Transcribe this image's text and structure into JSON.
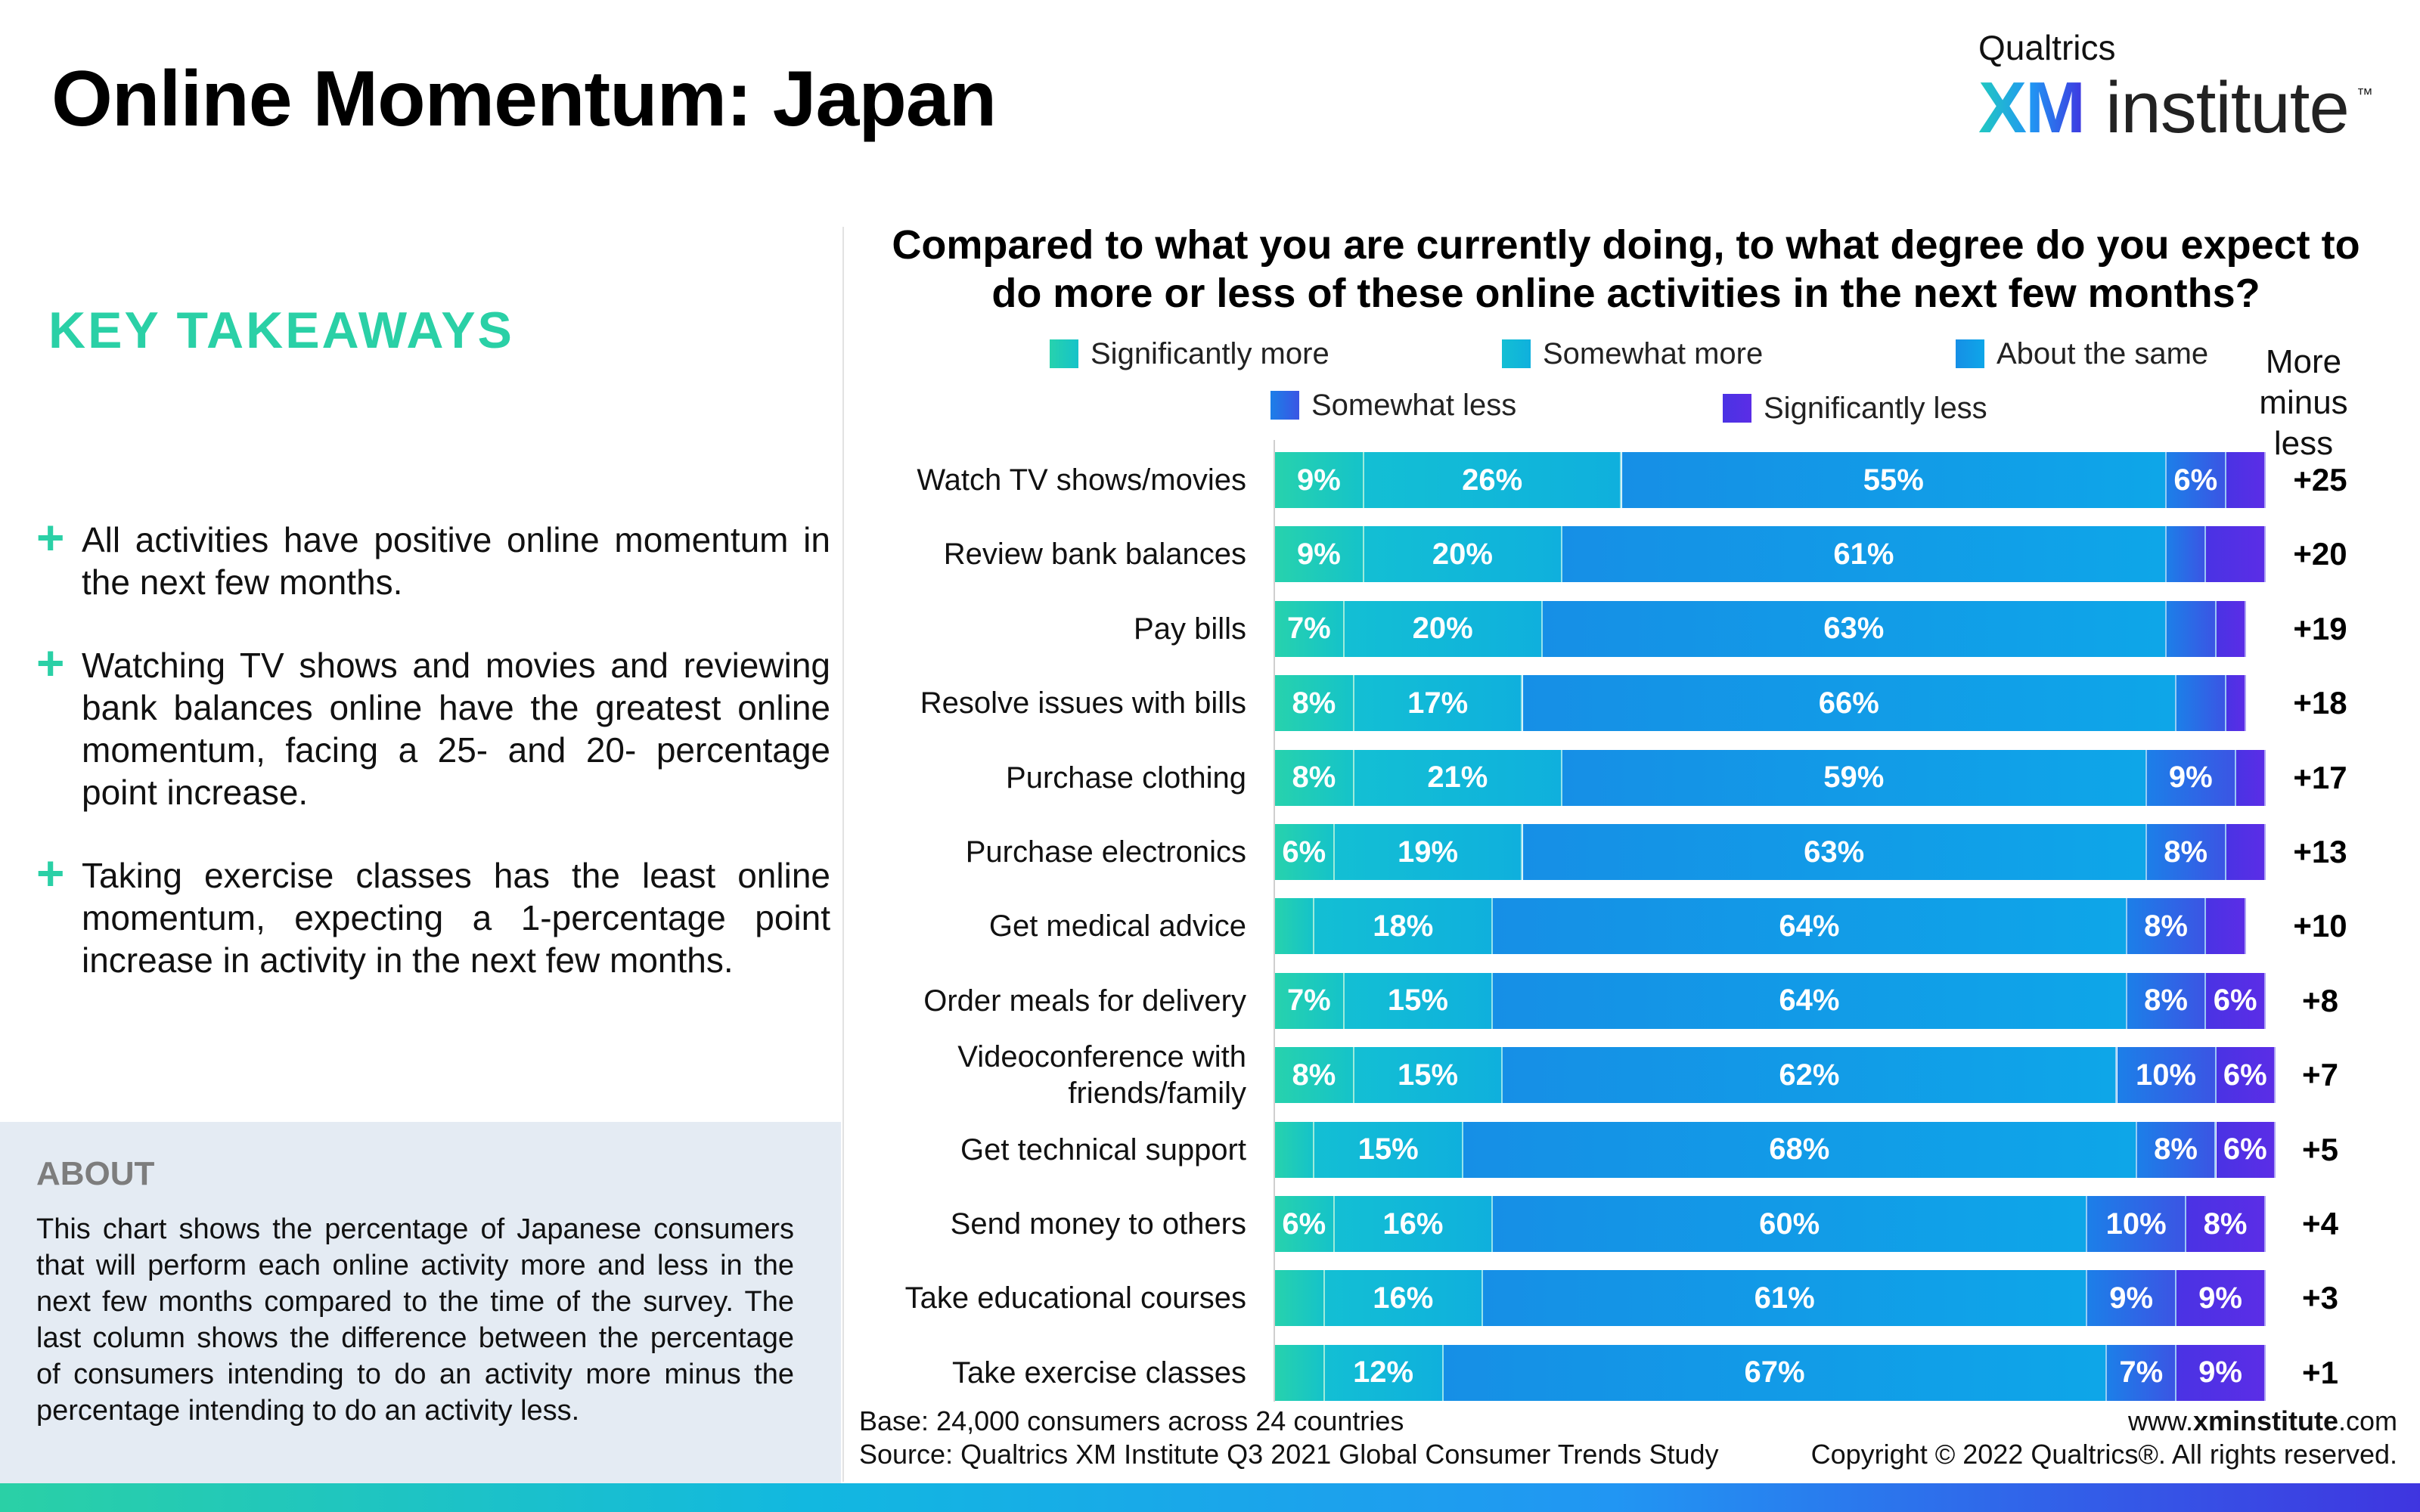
{
  "header": {
    "title": "Online Momentum: Japan",
    "logo_brand": "Qualtrics",
    "logo_xm": "XM",
    "logo_institute": "institute",
    "logo_tm": "™"
  },
  "takeaways": {
    "heading": "KEY TAKEAWAYS",
    "bullets": [
      "All activities have positive online momentum in the next few months.",
      "Watching TV shows and movies and reviewing bank balances online have the greatest online momentum, facing a 25- and 20- percentage point increase.",
      "Taking exercise classes has the least online momentum, expecting a 1-percentage point increase in activity in the next few months."
    ]
  },
  "about": {
    "heading": "ABOUT",
    "body": "This chart shows the percentage of Japanese consumers that will perform each online activity more and less in the next few months compared to the time of the survey. The last column shows the difference between the percentage of consumers intending to do an activity more minus the percentage intending to do an activity less."
  },
  "footer": {
    "base": "Base: 24,000 consumers across 24 countries",
    "source": "Source: Qualtrics XM Institute Q3 2021 Global Consumer Trends Study",
    "url_prefix": "www.",
    "url_bold": "xminstitute",
    "url_suffix": ".com",
    "copyright": "Copyright © 2022 Qualtrics®. All rights reserved."
  },
  "chart_data": {
    "type": "bar",
    "orientation": "horizontal-stacked-100",
    "title": "Compared to what you are currently doing, to what degree do you expect to do more or less of these online activities in the next few months?",
    "extra_column_label": "More minus less",
    "legend_placement": "top",
    "categories": [
      "Watch TV shows/movies",
      "Review bank balances",
      "Pay bills",
      "Resolve issues with bills",
      "Purchase clothing",
      "Purchase electronics",
      "Get medical advice",
      "Order meals for delivery",
      "Videoconference with friends/family",
      "Get technical support",
      "Send money to others",
      "Take educational courses",
      "Take exercise classes"
    ],
    "series": [
      {
        "name": "Significantly more",
        "color_start": "#27d2ad",
        "color_end": "#15c3c9",
        "values": [
          9,
          9,
          7,
          8,
          8,
          6,
          4,
          7,
          8,
          4,
          6,
          5,
          5
        ],
        "labels": [
          "9%",
          "9%",
          "7%",
          "8%",
          "8%",
          "6%",
          "",
          "7%",
          "8%",
          "",
          "6%",
          "",
          ""
        ]
      },
      {
        "name": "Somewhat more",
        "color_start": "#13bfd4",
        "color_end": "#0fb0dd",
        "values": [
          26,
          20,
          20,
          17,
          21,
          19,
          18,
          15,
          15,
          15,
          16,
          16,
          12
        ],
        "labels": [
          "26%",
          "20%",
          "20%",
          "17%",
          "21%",
          "19%",
          "18%",
          "15%",
          "15%",
          "15%",
          "16%",
          "16%",
          "12%"
        ]
      },
      {
        "name": "About the same",
        "color_start": "#168fe6",
        "color_end": "#0ea6e8",
        "values": [
          55,
          61,
          63,
          66,
          59,
          63,
          64,
          64,
          62,
          68,
          60,
          61,
          67
        ],
        "labels": [
          "55%",
          "61%",
          "63%",
          "66%",
          "59%",
          "63%",
          "64%",
          "64%",
          "62%",
          "68%",
          "60%",
          "61%",
          "67%"
        ]
      },
      {
        "name": "Somewhat less",
        "color_start": "#1c7fe8",
        "color_end": "#3b55e4",
        "values": [
          6,
          4,
          5,
          5,
          9,
          8,
          8,
          8,
          10,
          8,
          10,
          9,
          7
        ],
        "labels": [
          "6%",
          "",
          "",
          "",
          "9%",
          "8%",
          "8%",
          "8%",
          "10%",
          "8%",
          "10%",
          "9%",
          "7%"
        ]
      },
      {
        "name": "Significantly less",
        "color_start": "#4a33e4",
        "color_end": "#5b2de6",
        "values": [
          4,
          6,
          3,
          2,
          3,
          4,
          4,
          6,
          6,
          6,
          8,
          9,
          9
        ],
        "labels": [
          "",
          "",
          "",
          "",
          "",
          "",
          "",
          "6%",
          "6%",
          "6%",
          "8%",
          "9%",
          "9%"
        ]
      }
    ],
    "more_minus_less": [
      "+25",
      "+20",
      "+19",
      "+18",
      "+17",
      "+13",
      "+10",
      "+8",
      "+7",
      "+5",
      "+4",
      "+3",
      "+1"
    ],
    "xlim": [
      0,
      100
    ]
  }
}
